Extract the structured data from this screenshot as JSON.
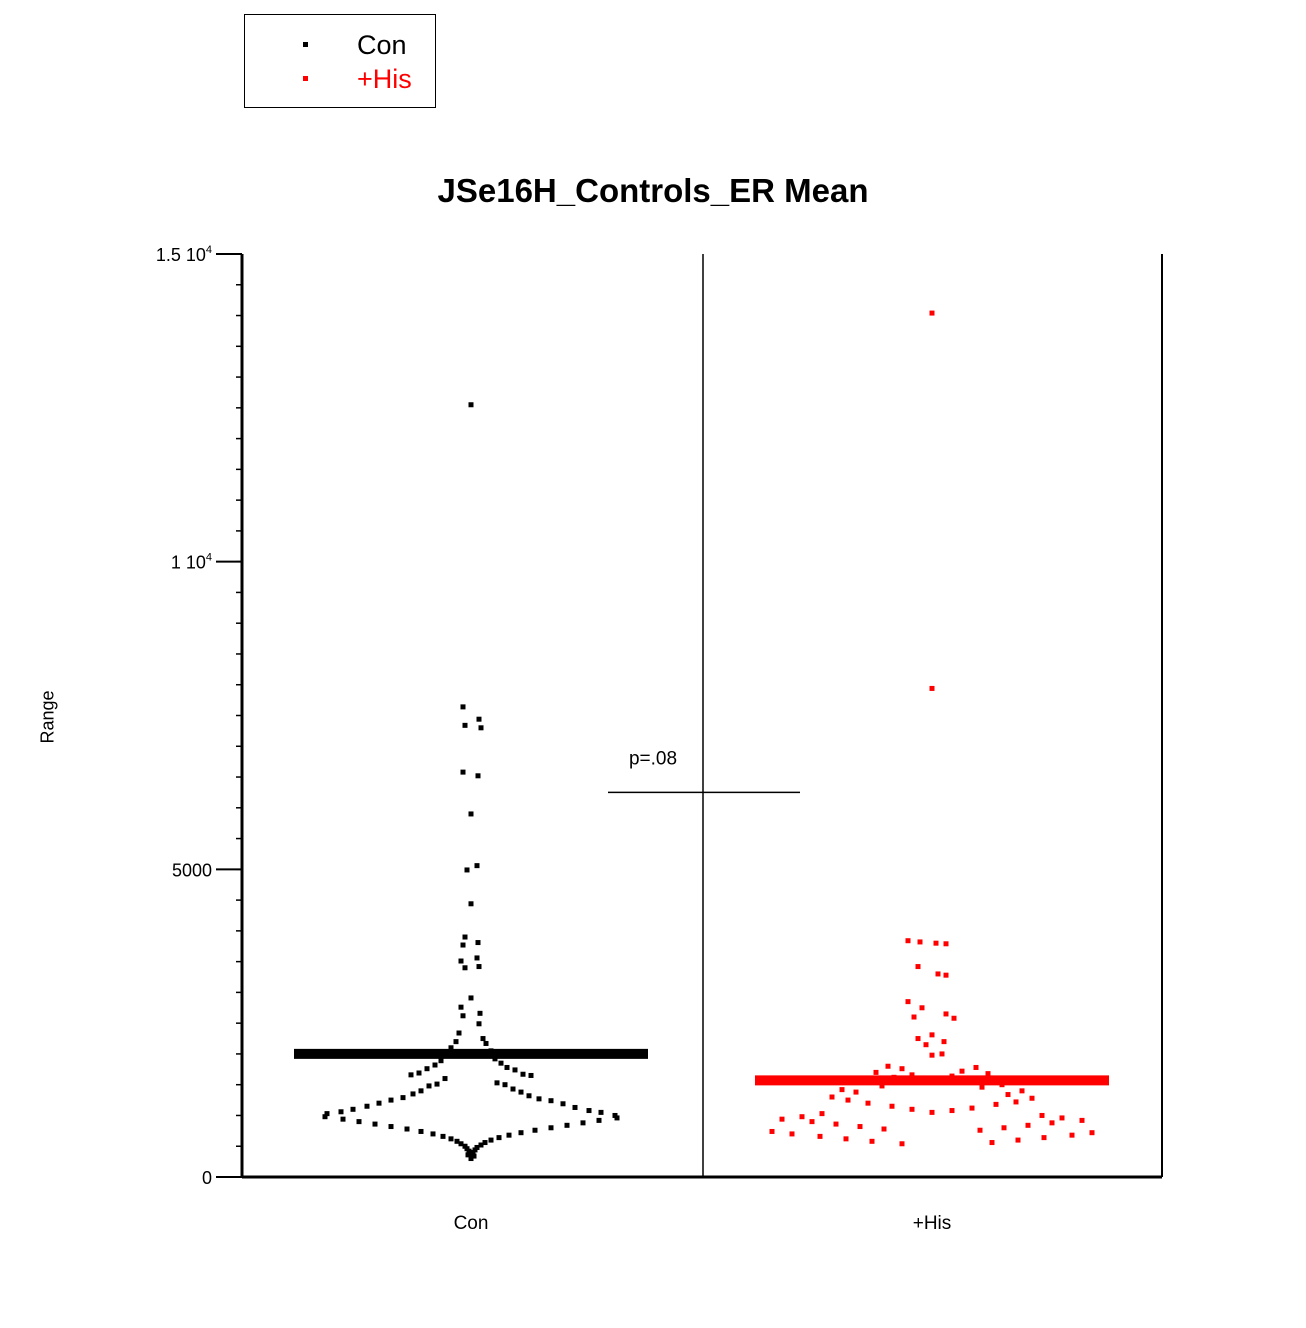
{
  "chart_data": {
    "type": "scatter",
    "subtype": "beeswarm dot plot",
    "title": "JSe16H_Controls_ER Mean",
    "xlabel": "",
    "ylabel": "Range",
    "categories": [
      "Con",
      "+His"
    ],
    "ylim": [
      0,
      15000
    ],
    "yticks": [
      {
        "value": 0,
        "label": "0",
        "exp": ""
      },
      {
        "value": 5000,
        "label": "5000",
        "exp": ""
      },
      {
        "value": 10000,
        "label": "1 10",
        "exp": "4"
      },
      {
        "value": 15000,
        "label": "1.5 10",
        "exp": "4"
      }
    ],
    "y_minor_step": 500,
    "legend": {
      "position": "top-left, outside plot",
      "entries": [
        {
          "name": "Con",
          "color": "#000000"
        },
        {
          "name": "+His",
          "color": "#ff0000"
        }
      ]
    },
    "series": [
      {
        "name": "Con",
        "color": "#000000",
        "mean": 2000,
        "values": [
          12550,
          7640,
          7440,
          7340,
          7300,
          6580,
          6520,
          5900,
          5060,
          4990,
          4440,
          3900,
          3810,
          3770,
          3560,
          3510,
          3420,
          3400,
          2910,
          2760,
          2660,
          2620,
          2490,
          2340,
          2250,
          2200,
          2170,
          2100,
          2050,
          1980,
          1920,
          1890,
          1850,
          1820,
          1780,
          1760,
          1740,
          1690,
          1670,
          1660,
          1650,
          1600,
          1530,
          1510,
          1500,
          1480,
          1430,
          1400,
          1380,
          1350,
          1320,
          1290,
          1270,
          1250,
          1240,
          1200,
          1190,
          1150,
          1130,
          1100,
          1080,
          1060,
          1050,
          1030,
          1000,
          980,
          960,
          940,
          920,
          900,
          880,
          860,
          840,
          820,
          800,
          780,
          760,
          740,
          720,
          700,
          680,
          660,
          640,
          620,
          600,
          580,
          560,
          540,
          520,
          500,
          480,
          460,
          440,
          420,
          400,
          380,
          360,
          340,
          320,
          300
        ],
        "spread": [
          0,
          -8,
          8,
          -6,
          10,
          -8,
          7,
          0,
          6,
          -4,
          0,
          -6,
          7,
          -8,
          6,
          -10,
          8,
          -6,
          0,
          -10,
          9,
          -8,
          8,
          -12,
          12,
          -15,
          15,
          -20,
          20,
          -24,
          24,
          -30,
          30,
          -36,
          36,
          -44,
          44,
          -52,
          52,
          -60,
          60,
          -26,
          26,
          -34,
          34,
          -42,
          42,
          -50,
          50,
          -58,
          58,
          -68,
          68,
          -80,
          80,
          -92,
          92,
          -104,
          104,
          -118,
          118,
          -130,
          130,
          -144,
          144,
          -146,
          146,
          -128,
          128,
          -112,
          112,
          -96,
          96,
          -80,
          80,
          -64,
          64,
          -50,
          50,
          -38,
          38,
          -28,
          28,
          -20,
          20,
          -14,
          14,
          -10,
          10,
          -6,
          6,
          -4,
          4,
          -2,
          2,
          0,
          -3,
          3,
          0,
          0
        ]
      },
      {
        "name": "+His",
        "color": "#ff0000",
        "mean": 1570,
        "values": [
          14040,
          7940,
          3840,
          3820,
          3800,
          3790,
          3420,
          3300,
          3280,
          2850,
          2750,
          2650,
          2600,
          2580,
          2310,
          2250,
          2200,
          2150,
          2000,
          1980,
          1800,
          1780,
          1760,
          1720,
          1700,
          1680,
          1660,
          1640,
          1620,
          1600,
          1580,
          1560,
          1540,
          1500,
          1480,
          1460,
          1420,
          1400,
          1380,
          1340,
          1300,
          1280,
          1250,
          1220,
          1200,
          1180,
          1150,
          1120,
          1100,
          1080,
          1050,
          1030,
          1000,
          980,
          960,
          940,
          920,
          900,
          880,
          860,
          840,
          820,
          800,
          780,
          760,
          740,
          720,
          700,
          680,
          660,
          640,
          620,
          600,
          580,
          560,
          540
        ],
        "spread": [
          0,
          0,
          -24,
          -12,
          4,
          14,
          -14,
          6,
          14,
          -24,
          -10,
          14,
          -18,
          22,
          0,
          -14,
          12,
          -6,
          10,
          0,
          -44,
          44,
          -30,
          30,
          -56,
          56,
          -20,
          20,
          -38,
          38,
          -10,
          10,
          -70,
          70,
          -50,
          50,
          -90,
          90,
          -76,
          76,
          -100,
          100,
          -84,
          84,
          -64,
          64,
          -40,
          40,
          -20,
          20,
          0,
          -110,
          110,
          -130,
          130,
          -150,
          150,
          -120,
          120,
          -96,
          96,
          -72,
          72,
          -48,
          48,
          -160,
          160,
          -140,
          140,
          -112,
          112,
          -86,
          86,
          -60,
          60,
          -30
        ]
      }
    ],
    "annotation": {
      "text": "p=.08",
      "y": 6250
    }
  }
}
